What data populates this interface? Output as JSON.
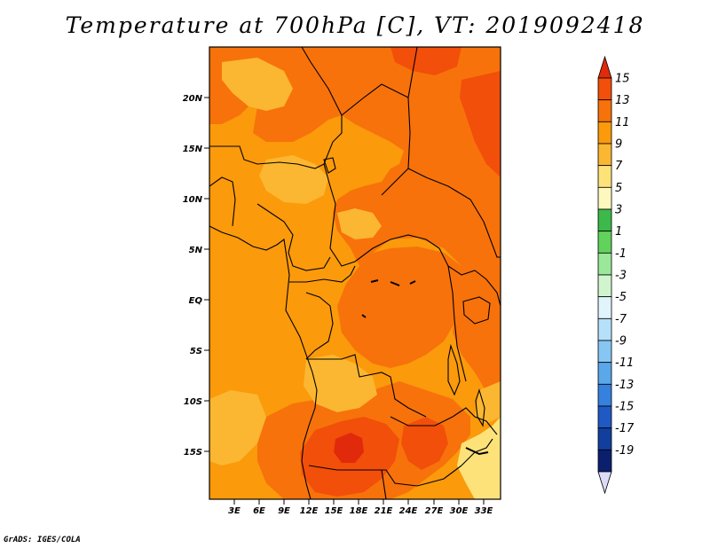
{
  "title": "Temperature at 700hPa [C], VT: 2019092418",
  "credit": "GrADS: IGES/COLA",
  "map": {
    "lat_labels": [
      "20N",
      "15N",
      "10N",
      "5N",
      "EQ",
      "5S",
      "10S",
      "15S"
    ],
    "lon_labels": [
      "3E",
      "6E",
      "9E",
      "12E",
      "15E",
      "18E",
      "21E",
      "24E",
      "27E",
      "30E",
      "33E"
    ]
  },
  "colorbar": {
    "labels": [
      "15",
      "13",
      "11",
      "9",
      "7",
      "5",
      "3",
      "1",
      "-1",
      "-3",
      "-5",
      "-7",
      "-9",
      "-11",
      "-13",
      "-15",
      "-17",
      "-19"
    ],
    "colors": [
      "#e12a0b",
      "#f24f0a",
      "#f7720b",
      "#fb9a0b",
      "#fbb731",
      "#fde27a",
      "#fef8bf",
      "#3cb94a",
      "#61d25b",
      "#9be89a",
      "#d0f5ce",
      "#e1f4fc",
      "#b6e0f9",
      "#87c6f3",
      "#5aa7ea",
      "#3680de",
      "#1f59c4",
      "#123f9e",
      "#0a1f6e",
      "#dcdcf8"
    ]
  },
  "colors": {
    "base_field": "#fb9a0b",
    "warm_field": "#f7720b",
    "hot_field": "#f24f0a",
    "peak_field": "#e12a0b",
    "cool_field": "#fbb731",
    "coolest_field": "#fde27a"
  }
}
